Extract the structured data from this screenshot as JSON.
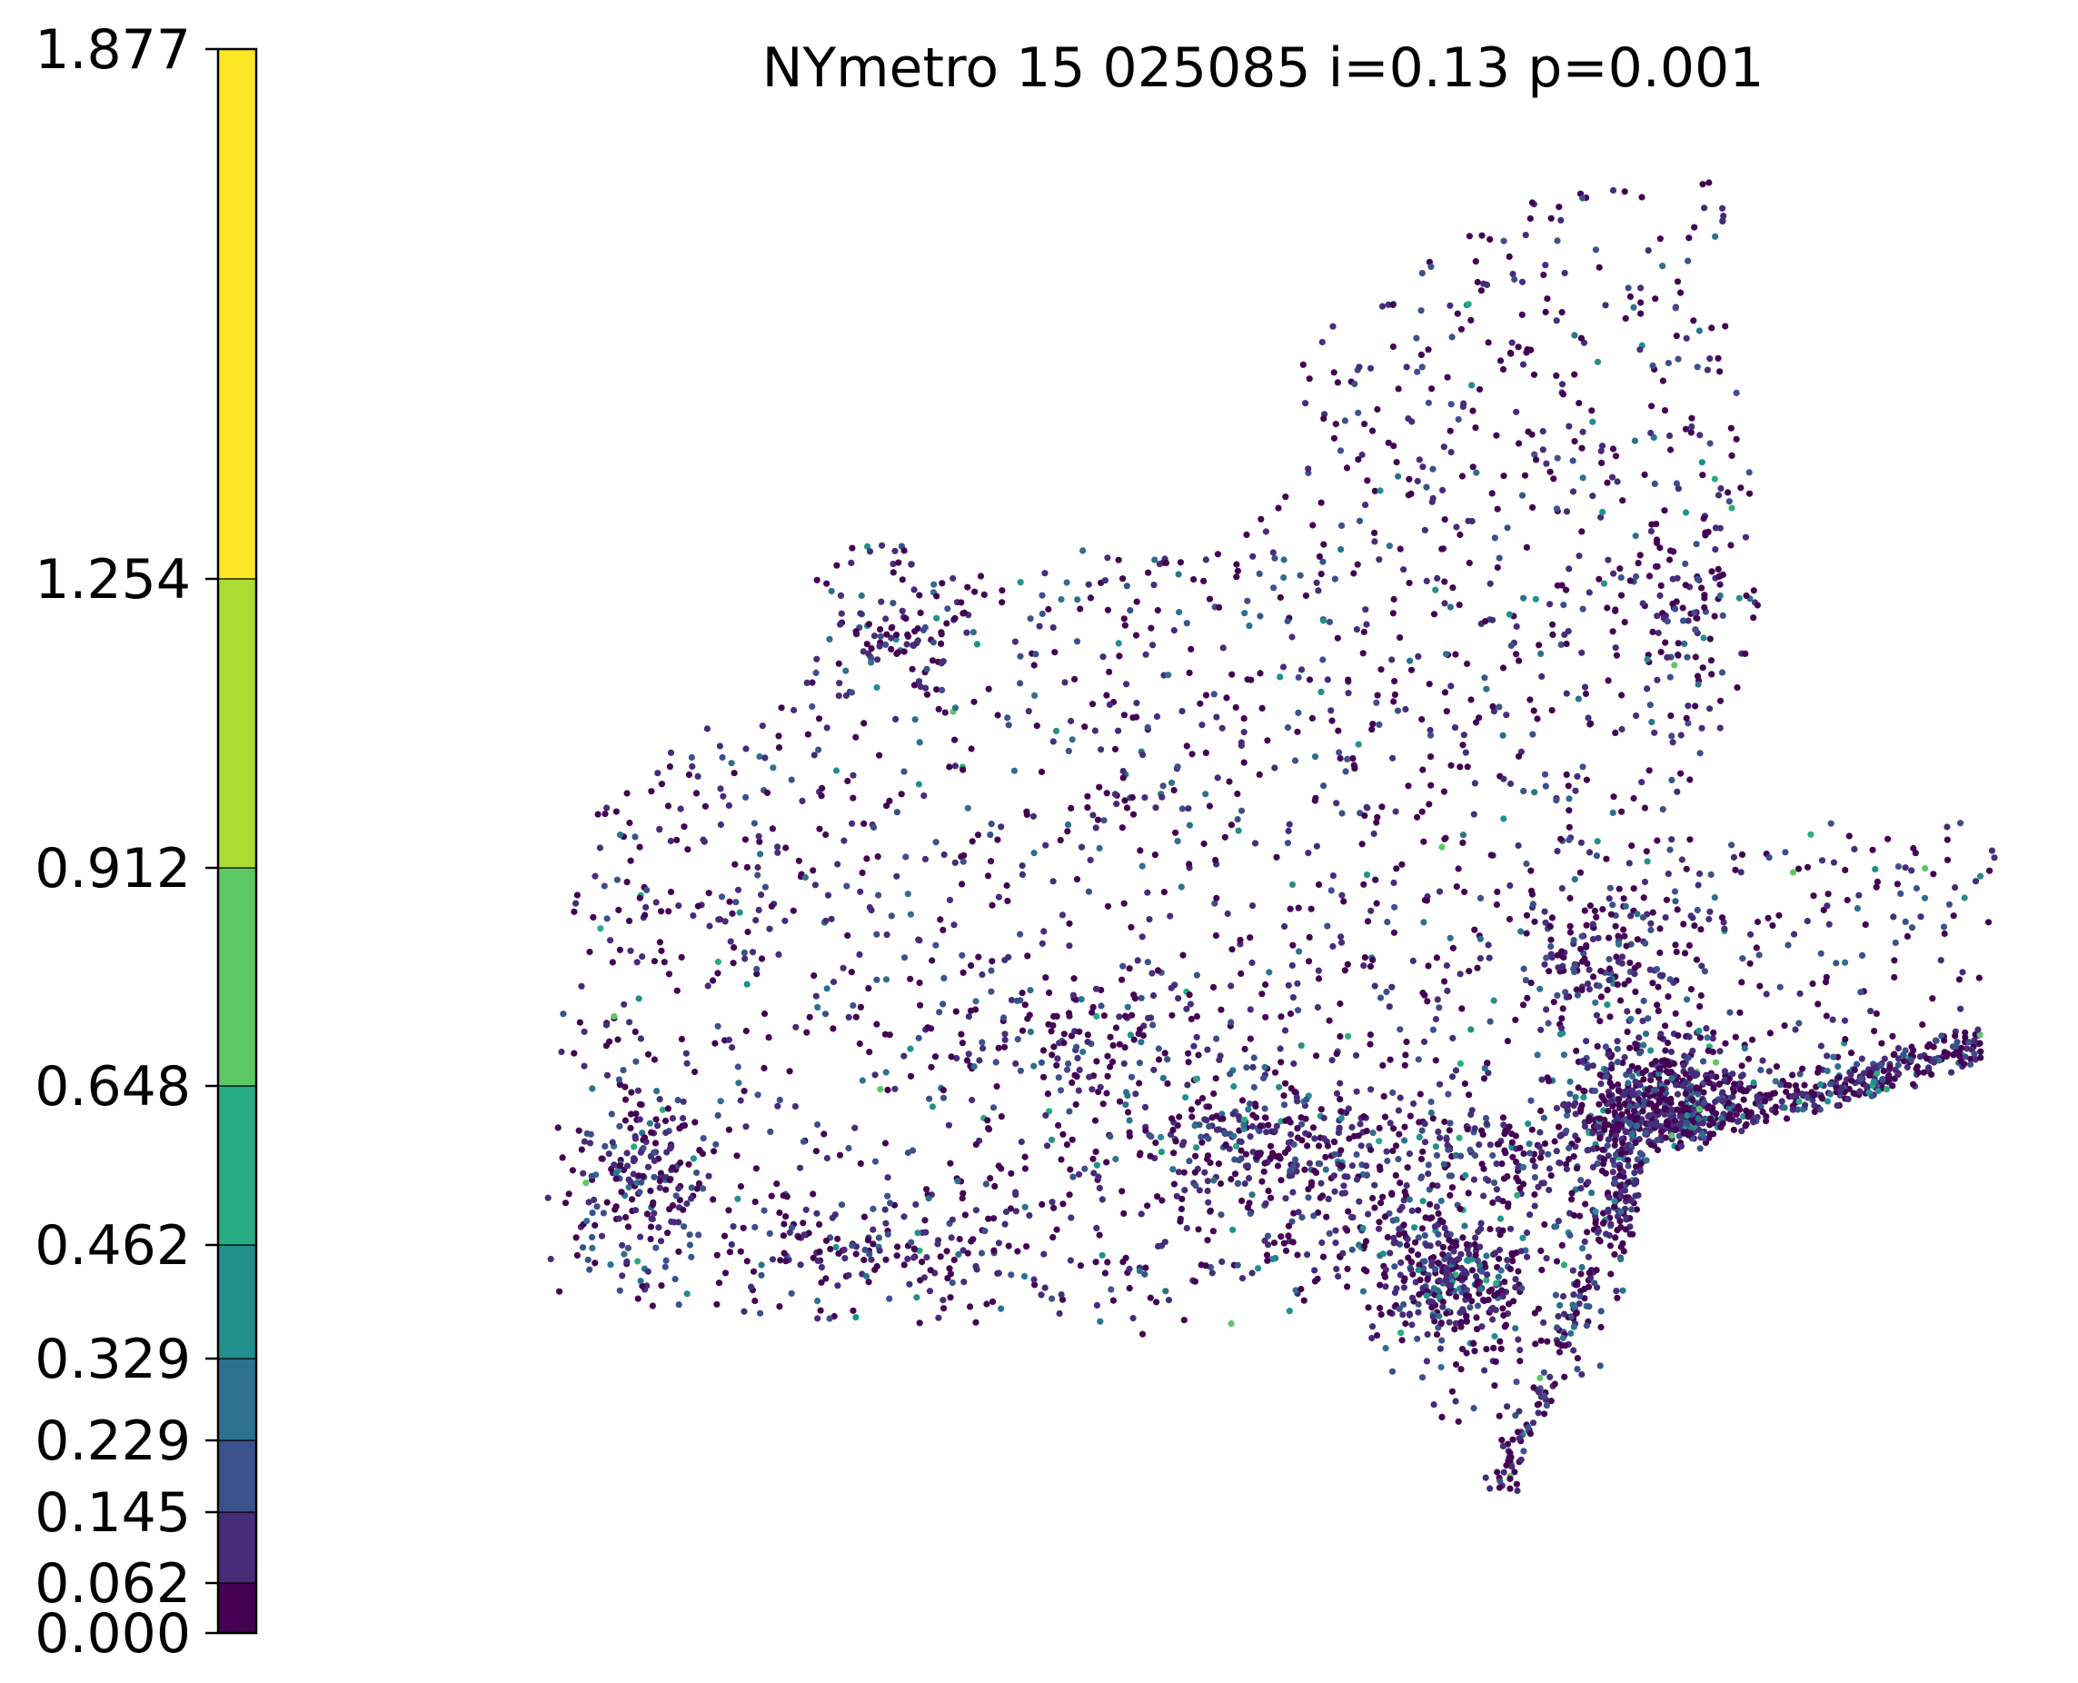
{
  "title": "NYmetro 15 025085 i=0.13 p=0.001",
  "colorbar": {
    "boundaries": [
      0.0,
      0.062,
      0.145,
      0.229,
      0.329,
      0.462,
      0.648,
      0.912,
      1.254,
      1.877
    ],
    "tick_labels": [
      "0.000",
      "0.062",
      "0.145",
      "0.229",
      "0.329",
      "0.462",
      "0.648",
      "0.912",
      "1.254",
      "1.877"
    ],
    "colors": [
      "#440154",
      "#472c7a",
      "#3b518b",
      "#2c718e",
      "#21908d",
      "#27ad81",
      "#5cc863",
      "#aadc32",
      "#fde725"
    ],
    "colormap": "viridis",
    "orientation": "vertical",
    "placement": "left"
  },
  "map": {
    "type": "scatter",
    "region": "NYmetro",
    "point_count_approx": 4500,
    "dominant_class": "0.000-0.062",
    "axes_visible": false
  }
}
